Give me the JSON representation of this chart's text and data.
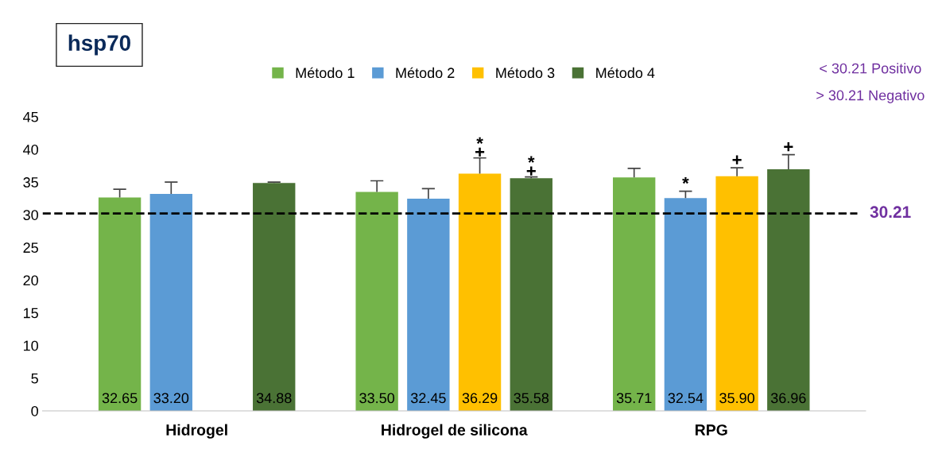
{
  "chart_data": {
    "type": "bar",
    "categories": [
      "Hidrogel",
      "Hidrogel de silicona",
      "RPG"
    ],
    "series": [
      {
        "name": "Método 1",
        "color": "#74b44a",
        "values": [
          32.65,
          33.5,
          35.71
        ],
        "errors": [
          [
            32.65,
            33.9
          ],
          [
            33.5,
            35.2
          ],
          [
            35.71,
            37.1
          ]
        ]
      },
      {
        "name": "Método 2",
        "color": "#5b9bd5",
        "values": [
          33.2,
          32.45,
          32.54
        ],
        "errors": [
          [
            33.2,
            35.0
          ],
          [
            32.45,
            34.0
          ],
          [
            32.54,
            33.6
          ]
        ]
      },
      {
        "name": "Método 3",
        "color": "#ffc000",
        "values": [
          null,
          36.29,
          35.9
        ],
        "errors": [
          null,
          [
            36.29,
            38.7
          ],
          [
            35.9,
            37.2
          ]
        ]
      },
      {
        "name": "Método 4",
        "color": "#4a7235",
        "values": [
          34.88,
          35.58,
          36.96
        ],
        "errors": [
          [
            34.88,
            35.0
          ],
          [
            35.58,
            35.8
          ],
          [
            36.96,
            39.2
          ]
        ]
      }
    ],
    "value_labels": [
      [
        "32.65",
        "33.50",
        "35.71"
      ],
      [
        "33.20",
        "32.45",
        "32.54"
      ],
      [
        null,
        "36.29",
        "35.90"
      ],
      [
        "34.88",
        "35.58",
        "36.96"
      ]
    ],
    "ylim": [
      0,
      45
    ],
    "yticks": [
      0,
      5,
      10,
      15,
      20,
      25,
      30,
      35,
      40,
      45
    ],
    "grid": false,
    "legend": "top",
    "ref_lines": [
      {
        "axis": "y",
        "value": 30.21,
        "label": "30.21",
        "color": "#000000",
        "line_style": "dashed"
      }
    ],
    "annotations": [
      {
        "text": "hsp70"
      },
      {
        "text": "< 30.21 Positivo"
      },
      {
        "text": "> 30.21 Negativo"
      },
      "*",
      "+",
      "*",
      "+",
      "*",
      "+",
      "+"
    ]
  }
}
